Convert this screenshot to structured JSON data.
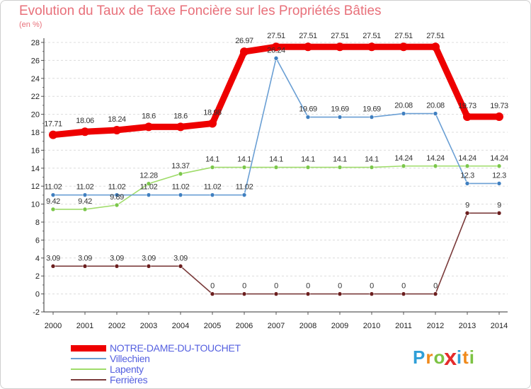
{
  "chart_data": {
    "type": "line",
    "title": "Evolution du Taux de Taxe Foncière sur les Propriétés Bâties",
    "unit_label": "(en %)",
    "xlabel": "",
    "ylabel": "",
    "x": [
      "2000",
      "2001",
      "2002",
      "2003",
      "2004",
      "2005",
      "2006",
      "2007",
      "2008",
      "2009",
      "2010",
      "2011",
      "2012",
      "2013",
      "2014"
    ],
    "ylim": [
      -2,
      28
    ],
    "yticks": [
      -2,
      0,
      2,
      4,
      6,
      8,
      10,
      12,
      14,
      16,
      18,
      20,
      22,
      24,
      26,
      28
    ],
    "grid": "horizontal dashed",
    "legend_position": "bottom-left",
    "series": [
      {
        "name": "NOTRE-DAME-DU-TOUCHET",
        "color": "#ee0000",
        "width": "thick",
        "values": [
          17.71,
          18.06,
          18.24,
          18.6,
          18.6,
          18.98,
          26.97,
          27.51,
          27.51,
          27.51,
          27.51,
          27.51,
          27.51,
          19.73,
          19.73
        ],
        "labels": [
          "17.71",
          "18.06",
          "18.24",
          "18.6",
          "18.6",
          "18.98",
          "26.97",
          "27.51",
          "27.51",
          "27.51",
          "27.51",
          "27.51",
          "27.51",
          "19.73",
          "19.73"
        ]
      },
      {
        "name": "Villechien",
        "color": "#6a9fd4",
        "point_color": "#3f7fc0",
        "values": [
          11.02,
          11.02,
          11.02,
          11.02,
          11.02,
          11.02,
          11.02,
          26.24,
          19.69,
          19.69,
          19.69,
          20.08,
          20.08,
          12.3,
          12.3
        ],
        "labels": [
          "11.02",
          "11.02",
          "11.02",
          "11.02",
          "11.02",
          "11.02",
          "11.02",
          "26.24",
          "19.69",
          "19.69",
          "19.69",
          "20.08",
          "20.08",
          "12.3",
          "12.3"
        ]
      },
      {
        "name": "Lapenty",
        "color": "#9fdc6a",
        "point_color": "#7bc74a",
        "values": [
          9.42,
          9.42,
          9.89,
          12.28,
          13.37,
          14.1,
          14.1,
          14.1,
          14.1,
          14.1,
          14.1,
          14.24,
          14.24,
          14.24,
          14.24
        ],
        "labels": [
          "9.42",
          "9.42",
          "9.89",
          "12.28",
          "13.37",
          "14.1",
          "14.1",
          "14.1",
          "14.1",
          "14.1",
          "14.1",
          "14.24",
          "14.24",
          "14.24",
          "14.24"
        ]
      },
      {
        "name": "Ferrières",
        "color": "#7a3a3a",
        "point_color": "#6b1e1e",
        "values": [
          3.09,
          3.09,
          3.09,
          3.09,
          3.09,
          0,
          0,
          0,
          0,
          0,
          0,
          0,
          0,
          9,
          9
        ],
        "labels": [
          "3.09",
          "3.09",
          "3.09",
          "3.09",
          "3.09",
          "0",
          "0",
          "0",
          "0",
          "0",
          "0",
          "0",
          "0",
          "9",
          "9"
        ]
      }
    ]
  },
  "brand": {
    "letters": [
      "P",
      "r",
      "o",
      "x",
      "i",
      "t",
      "i"
    ],
    "colors": [
      "#2f9fd8",
      "#f08a1c",
      "#7cc242",
      "#e52b2b",
      "#2f9fd8",
      "#f08a1c",
      "#7cc242"
    ]
  }
}
